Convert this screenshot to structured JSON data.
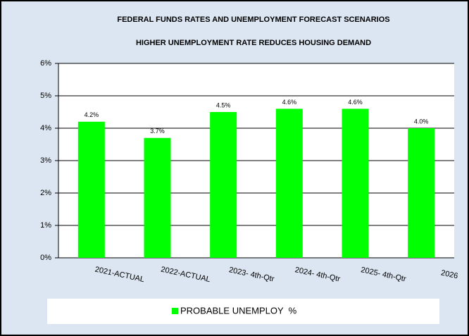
{
  "chart_data": {
    "type": "bar",
    "title": "FEDERAL FUNDS RATES AND UNEMPLOYMENT FORECAST SCENARIOS",
    "subtitle": "HIGHER UNEMPLOYMENT RATE REDUCES HOUSING DEMAND",
    "categories": [
      "2021-ACTUAL",
      "2022-ACTUAL",
      "2023- 4th-Qtr",
      "2024- 4th-Qtr",
      "2025- 4th-Qtr",
      "2026"
    ],
    "series": [
      {
        "name": "PROBABLE UNEMPLOY  %",
        "color": "#00ff00",
        "values": [
          4.2,
          3.7,
          4.5,
          4.6,
          4.6,
          4.0
        ],
        "value_labels": [
          "4.2%",
          "3.7%",
          "4.5%",
          "4.6%",
          "4.6%",
          "4.0%"
        ]
      }
    ],
    "ylim": [
      0,
      6
    ],
    "yticks": [
      {
        "value": 0,
        "label": "0%"
      },
      {
        "value": 1,
        "label": "1%"
      },
      {
        "value": 2,
        "label": "2%"
      },
      {
        "value": 3,
        "label": "3%"
      },
      {
        "value": 4,
        "label": "4%"
      },
      {
        "value": 5,
        "label": "5%"
      },
      {
        "value": 6,
        "label": "6%"
      }
    ],
    "grid": true,
    "legend": "bottom"
  }
}
